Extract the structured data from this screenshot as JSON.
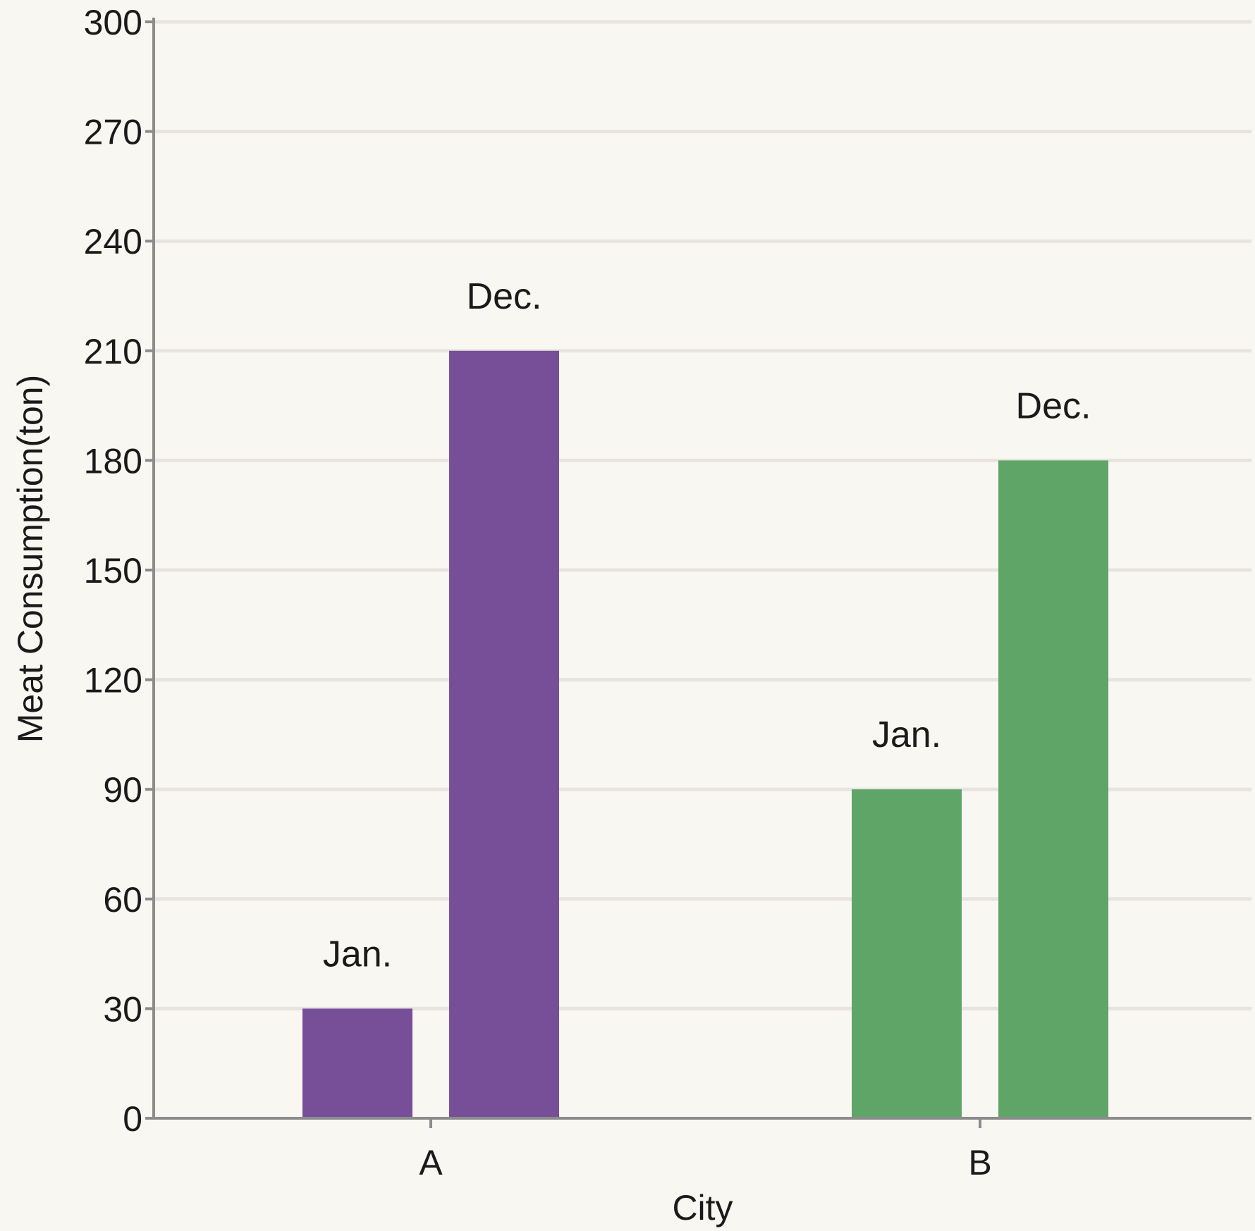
{
  "chart_data": {
    "type": "bar",
    "categories": [
      "A",
      "B"
    ],
    "bars": [
      {
        "category": "A",
        "label": "Jan.",
        "value": 30,
        "color": "#774f98"
      },
      {
        "category": "A",
        "label": "Dec.",
        "value": 210,
        "color": "#774f98"
      },
      {
        "category": "B",
        "label": "Jan.",
        "value": 90,
        "color": "#5fa568"
      },
      {
        "category": "B",
        "label": "Dec.",
        "value": 180,
        "color": "#5fa568"
      }
    ],
    "xlabel": "City",
    "ylabel": "Meat Consumption(ton)",
    "ylim": [
      0,
      300
    ],
    "yticks": [
      0,
      30,
      60,
      90,
      120,
      150,
      180,
      210,
      240,
      270,
      300
    ],
    "grid": true,
    "colors": {
      "background": "#f9f7f2",
      "grid": "#e7e4df",
      "axis": "#8c8c8c"
    }
  }
}
